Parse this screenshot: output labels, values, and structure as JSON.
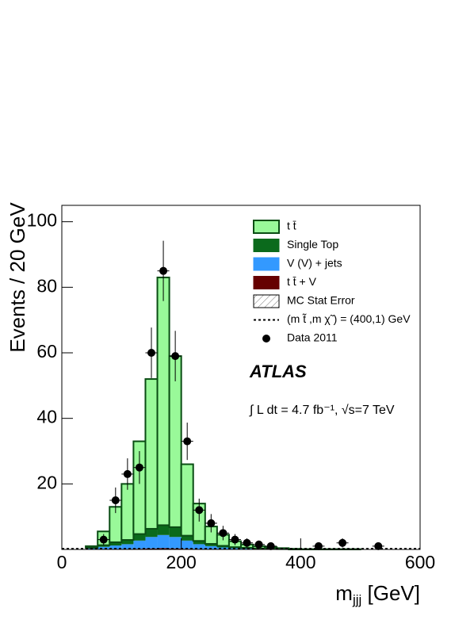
{
  "chart_data": {
    "type": "stacked_histogram",
    "y_label": "Events / 20 GeV",
    "x_label": [
      "m",
      "jjj",
      "[GeV]"
    ],
    "bins": [
      0,
      20,
      40,
      60,
      80,
      100,
      120,
      140,
      160,
      180,
      200,
      220,
      240,
      260,
      280,
      300,
      320,
      340,
      360,
      380,
      400,
      420,
      440,
      460,
      480,
      500,
      520,
      540,
      560,
      580,
      600
    ],
    "series": [
      {
        "name": "t t̄",
        "color": "#99f999",
        "edge": "#0a4d14",
        "values": [
          0,
          0,
          0.5,
          4.2,
          10.8,
          17.1,
          28.3,
          45.7,
          75.6,
          52.2,
          21.8,
          11.4,
          5.3,
          3.4,
          1.8,
          1,
          0.7,
          0.5,
          0.3,
          0.2,
          0.1,
          0.1,
          0.1,
          0.1,
          0.1,
          0,
          0,
          0,
          0,
          0
        ]
      },
      {
        "name": "Single Top",
        "color": "#0b6a1c",
        "values": [
          0,
          0,
          0.2,
          0.5,
          1,
          1.3,
          2,
          2.5,
          3,
          3,
          1.5,
          1,
          0.7,
          0.5,
          0.3,
          0.2,
          0.1,
          0.1,
          0,
          0,
          0,
          0,
          0,
          0,
          0,
          0,
          0,
          0,
          0,
          0
        ]
      },
      {
        "name": "V (V) + jets",
        "color": "#3399ff",
        "values": [
          0,
          0,
          0.3,
          0.8,
          1.2,
          1.5,
          2.5,
          3.5,
          4,
          3.5,
          2.5,
          1.5,
          1,
          0.6,
          0.4,
          0.3,
          0.2,
          0.1,
          0.1,
          0,
          0,
          0,
          0,
          0,
          0,
          0,
          0,
          0,
          0,
          0
        ]
      },
      {
        "name": "t t̄ + V",
        "color": "#660000",
        "values": [
          0,
          0,
          0,
          0,
          0,
          0.1,
          0.2,
          0.3,
          0.4,
          0.3,
          0.2,
          0.1,
          0,
          0,
          0,
          0,
          0,
          0,
          0,
          0,
          0,
          0,
          0,
          0,
          0,
          0,
          0,
          0,
          0,
          0
        ]
      }
    ],
    "mc_stat_error": {
      "name": "MC Stat Error"
    },
    "signal": {
      "name": "(m t̃ ,m χ̃ ) = (400,1) GeV",
      "values": [
        0.2,
        0.2,
        0.2,
        0.2,
        0.2,
        0.2,
        0.2,
        0.2,
        0.2,
        0.2,
        0.2,
        0.2,
        0.2,
        0.2,
        0.2,
        0.2,
        0.2,
        0.2,
        0.2,
        0.2,
        0.2,
        0.2,
        0.2,
        0.2,
        0.2,
        0.2,
        0.2,
        0.2,
        0.2,
        0.2
      ]
    },
    "data": {
      "name": "Data 2011",
      "x": [
        70,
        90,
        110,
        130,
        150,
        170,
        190,
        210,
        230,
        250,
        270,
        290,
        310,
        330,
        350,
        430,
        470,
        530
      ],
      "values": [
        3,
        15,
        23,
        25,
        60,
        85,
        59,
        33,
        12,
        8,
        5,
        3,
        2,
        1.5,
        1,
        1,
        2,
        1
      ],
      "errors": [
        1.7,
        3.9,
        4.8,
        5,
        7.7,
        9.2,
        7.7,
        5.7,
        3.5,
        2.8,
        2.2,
        1.7,
        1.4,
        1.2,
        1,
        1,
        1.4,
        1
      ]
    },
    "experiment": "ATLAS",
    "luminosity": "∫ L dt = 4.7 fb⁻¹, √s=7 TeV",
    "xlim": [
      0,
      600
    ],
    "ylim": [
      0,
      105
    ],
    "xticks": [
      0,
      200,
      400,
      600
    ],
    "yticks": [
      20,
      40,
      60,
      80,
      100
    ]
  }
}
